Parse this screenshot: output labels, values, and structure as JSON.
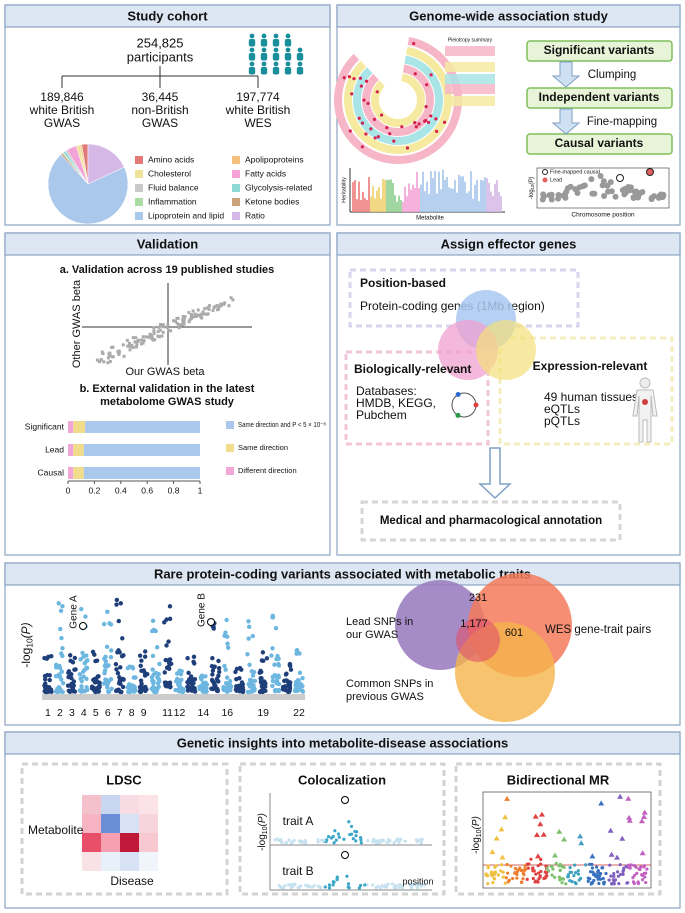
{
  "study_cohort": {
    "title": "Study cohort",
    "total": "254,825",
    "total_label": "participants",
    "groups": [
      {
        "count": "189,846",
        "lines": [
          "white British",
          "GWAS"
        ]
      },
      {
        "count": "36,445",
        "lines": [
          "non-British",
          "GWAS"
        ]
      },
      {
        "count": "197,774",
        "lines": [
          "white British",
          "WES"
        ]
      }
    ],
    "categories": [
      {
        "name": "Amino acids",
        "color": "#e07a78",
        "value": 2.5
      },
      {
        "name": "Apolipoproteins",
        "color": "#f3c07d",
        "value": 0.8
      },
      {
        "name": "Cholesterol",
        "color": "#efe39a",
        "value": 1.5
      },
      {
        "name": "Fatty acids",
        "color": "#f4a3d6",
        "value": 4
      },
      {
        "name": "Fluid balance",
        "color": "#c8c8c8",
        "value": 0.8
      },
      {
        "name": "Glycolysis-related",
        "color": "#8fd8d8",
        "value": 1
      },
      {
        "name": "Inflammation",
        "color": "#a8dca0",
        "value": 0.4
      },
      {
        "name": "Ketone bodies",
        "color": "#c9a27a",
        "value": 0.8
      },
      {
        "name": "Lipoprotein and lipid",
        "color": "#aac8ec",
        "value": 70
      },
      {
        "name": "Ratio",
        "color": "#d6b8e6",
        "value": 18
      }
    ]
  },
  "gwas": {
    "title": "Genome-wide association study",
    "circos_label": "Pleiotropy summary",
    "steps": [
      "Significant variants",
      "Independent variants",
      "Causal variants"
    ],
    "transitions": [
      "Clumping",
      "Fine-mapping"
    ],
    "heritability_ylabel": "Heritability",
    "heritability_xlabel": "Metabolite",
    "finemap_legend": [
      "Fine-mapped causal",
      "Lead"
    ],
    "finemap_ylabel": {
      "prefix": "-log",
      "sub": "10",
      "suffix": "(P)"
    },
    "finemap_xlabel": "Chromosome position"
  },
  "validation": {
    "title": "Validation",
    "a_title": "a. Validation across 19 published studies",
    "a_ylabel": "Other GWAS beta",
    "a_xlabel": "Our GWAS beta",
    "b_title_lines": [
      "b. External validation in the latest",
      "metabolome GWAS study"
    ],
    "external": {
      "categories": [
        "Significant",
        "Lead",
        "Causal"
      ],
      "series": [
        {
          "name": "Different direction",
          "color": "#f2a6d8",
          "values": [
            0.04,
            0.04,
            0.04
          ]
        },
        {
          "name": "Same direction",
          "color": "#f0dc8a",
          "values": [
            0.09,
            0.08,
            0.08
          ]
        },
        {
          "name": "Same direction and P < 5 × 10⁻⁸",
          "color": "#aac8ec",
          "values": [
            0.87,
            0.88,
            0.88
          ]
        }
      ],
      "xlim": [
        0,
        1
      ],
      "xticks": [
        0,
        0.2,
        0.4,
        0.6,
        0.8,
        1
      ]
    }
  },
  "effector": {
    "title": "Assign effector genes",
    "position": {
      "title": "Position-based",
      "text": "Protein-coding genes (1Mb region)"
    },
    "biological": {
      "title": "Biologically-relevant",
      "lines": [
        "Databases:",
        "HMDB, KEGG,",
        "Pubchem"
      ]
    },
    "expression": {
      "title": "Expression-relevant",
      "lines": [
        "49 human tissues",
        "eQTLs",
        "pQTLs"
      ]
    },
    "annotation": "Medical and pharmacological annotation"
  },
  "rare": {
    "title": "Rare protein-coding variants associated with metabolic traits",
    "ylabel": {
      "prefix": "-log",
      "sub": "10",
      "suffix": "(P)"
    },
    "genes": [
      "Gene A",
      "Gene B"
    ],
    "chromosomes": [
      "1",
      "2",
      "3",
      "4",
      "5",
      "6",
      "7",
      "8",
      "9",
      "11",
      "12",
      "14",
      "16",
      "19",
      "22"
    ],
    "venn": {
      "lead": [
        "Lead SNPs in",
        "our GWAS"
      ],
      "wes": "WES gene-trait pairs",
      "common": [
        "Common SNPs in",
        "previous GWAS"
      ],
      "counts": [
        "231",
        "1,177",
        "601"
      ]
    }
  },
  "insights": {
    "title": "Genetic insights into metabolite-disease associations",
    "ldsc": {
      "title": "LDSC",
      "ylabel": "Metabolite",
      "xlabel": "Disease"
    },
    "coloc": {
      "title": "Colocalization",
      "traits": [
        "trait A",
        "trait B"
      ],
      "xlabel": "position",
      "ylabel": {
        "prefix": "-log",
        "sub": "10",
        "suffix": "(P)"
      }
    },
    "mr": {
      "title": "Bidirectional MR",
      "ylabel": {
        "prefix": "-log",
        "sub": "10",
        "suffix": "(P)"
      }
    }
  }
}
